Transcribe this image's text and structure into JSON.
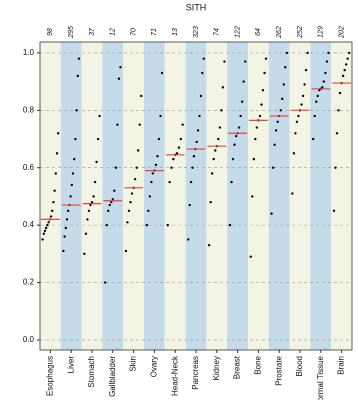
{
  "chart_data": {
    "type": "sorted-dots",
    "title": "SITH",
    "ylim": [
      -0.035,
      1.038
    ],
    "yticks": [
      {
        "value": 0,
        "label": "0.0"
      },
      0.2,
      0.4,
      0.6,
      0.8,
      {
        "value": 1,
        "label": "1.0"
      }
    ],
    "grid": true,
    "band_colors": [
      "#f3f5e4",
      "#c6dbea"
    ],
    "point_color": "#000000",
    "median_color": "#e8453c",
    "groups": [
      {
        "name": "Esophagus",
        "n": 98,
        "median": 0.42,
        "values": [
          0.35,
          0.37,
          0.38,
          0.39,
          0.4,
          0.41,
          0.42,
          0.43,
          0.45,
          0.48,
          0.52,
          0.58,
          0.65,
          0.72
        ]
      },
      {
        "name": "Liver",
        "n": 295,
        "median": 0.47,
        "values": [
          0.31,
          0.36,
          0.39,
          0.42,
          0.45,
          0.47,
          0.5,
          0.54,
          0.58,
          0.63,
          0.7,
          0.8,
          0.92,
          0.98
        ]
      },
      {
        "name": "Stomach",
        "n": 37,
        "median": 0.475,
        "values": [
          0.3,
          0.37,
          0.42,
          0.45,
          0.47,
          0.48,
          0.5,
          0.55,
          0.62,
          0.7,
          0.78
        ]
      },
      {
        "name": "Gallbladder",
        "n": 12,
        "median": 0.485,
        "values": [
          0.2,
          0.4,
          0.45,
          0.47,
          0.48,
          0.49,
          0.52,
          0.6,
          0.75,
          0.91,
          0.95
        ]
      },
      {
        "name": "Skin",
        "n": 70,
        "median": 0.53,
        "values": [
          0.31,
          0.41,
          0.45,
          0.48,
          0.51,
          0.53,
          0.56,
          0.6,
          0.66,
          0.75,
          0.85
        ]
      },
      {
        "name": "Ovary",
        "n": 71,
        "median": 0.59,
        "values": [
          0.4,
          0.45,
          0.5,
          0.55,
          0.58,
          0.59,
          0.61,
          0.64,
          0.7,
          0.78,
          0.93
        ]
      },
      {
        "name": "Head-Neck",
        "n": 13,
        "median": 0.645,
        "values": [
          0.4,
          0.55,
          0.6,
          0.63,
          0.645,
          0.65,
          0.67,
          0.7,
          0.75
        ]
      },
      {
        "name": "Pancreas",
        "n": 323,
        "median": 0.665,
        "values": [
          0.35,
          0.47,
          0.55,
          0.6,
          0.64,
          0.665,
          0.69,
          0.73,
          0.78,
          0.85,
          0.93,
          0.98
        ]
      },
      {
        "name": "Kidney",
        "n": 74,
        "median": 0.675,
        "values": [
          0.33,
          0.48,
          0.58,
          0.63,
          0.66,
          0.675,
          0.7,
          0.74,
          0.8,
          0.88,
          0.97
        ]
      },
      {
        "name": "Breast",
        "n": 122,
        "median": 0.72,
        "values": [
          0.4,
          0.55,
          0.63,
          0.68,
          0.71,
          0.72,
          0.74,
          0.78,
          0.83,
          0.9,
          0.97
        ]
      },
      {
        "name": "Bone",
        "n": 64,
        "median": 0.765,
        "values": [
          0.29,
          0.5,
          0.63,
          0.7,
          0.74,
          0.765,
          0.78,
          0.82,
          0.87,
          0.93,
          0.98
        ]
      },
      {
        "name": "Prostate",
        "n": 262,
        "median": 0.78,
        "values": [
          0.44,
          0.6,
          0.68,
          0.73,
          0.76,
          0.78,
          0.8,
          0.84,
          0.89,
          0.95,
          1.0
        ]
      },
      {
        "name": "Blood",
        "n": 252,
        "median": 0.8,
        "values": [
          0.51,
          0.65,
          0.72,
          0.76,
          0.78,
          0.8,
          0.82,
          0.85,
          0.89,
          0.94,
          1.0
        ]
      },
      {
        "name": "Normal Tissue",
        "n": 129,
        "median": 0.875,
        "values": [
          0.7,
          0.78,
          0.83,
          0.85,
          0.87,
          0.875,
          0.88,
          0.9,
          0.93,
          0.97,
          1.0
        ]
      },
      {
        "name": "Brain",
        "n": 202,
        "median": 0.895,
        "values": [
          0.45,
          0.6,
          0.72,
          0.8,
          0.86,
          0.895,
          0.92,
          0.94,
          0.96,
          0.98,
          1.0
        ]
      }
    ]
  }
}
